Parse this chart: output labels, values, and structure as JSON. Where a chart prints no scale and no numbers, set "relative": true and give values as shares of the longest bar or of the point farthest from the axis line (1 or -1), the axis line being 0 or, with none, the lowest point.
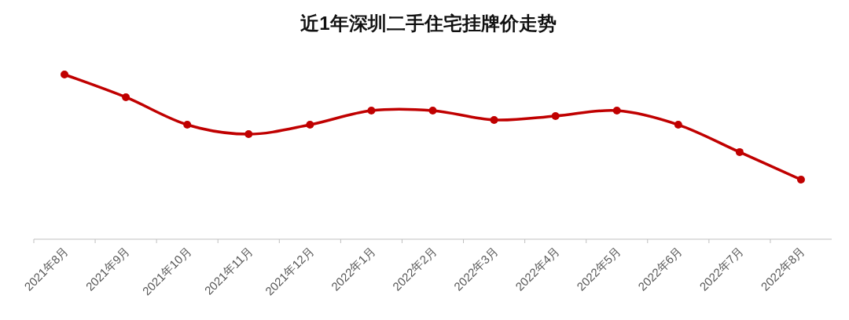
{
  "chart_data": {
    "type": "line",
    "title": "近1年深圳二手住宅挂牌价走势",
    "categories": [
      "2021年8月",
      "2021年9月",
      "2021年10月",
      "2021年11月",
      "2021年12月",
      "2022年1月",
      "2022年2月",
      "2022年3月",
      "2022年4月",
      "2022年5月",
      "2022年6月",
      "2022年7月",
      "2022年8月"
    ],
    "relative": true,
    "marker": "circle",
    "line_style": "solid",
    "grid": false,
    "series": [
      {
        "color": "#c00000",
        "values": [
          1,
          0.862,
          0.695,
          0.638,
          0.695,
          0.781,
          0.781,
          0.724,
          0.748,
          0.781,
          0.695,
          0.529,
          0.362
        ]
      }
    ]
  }
}
